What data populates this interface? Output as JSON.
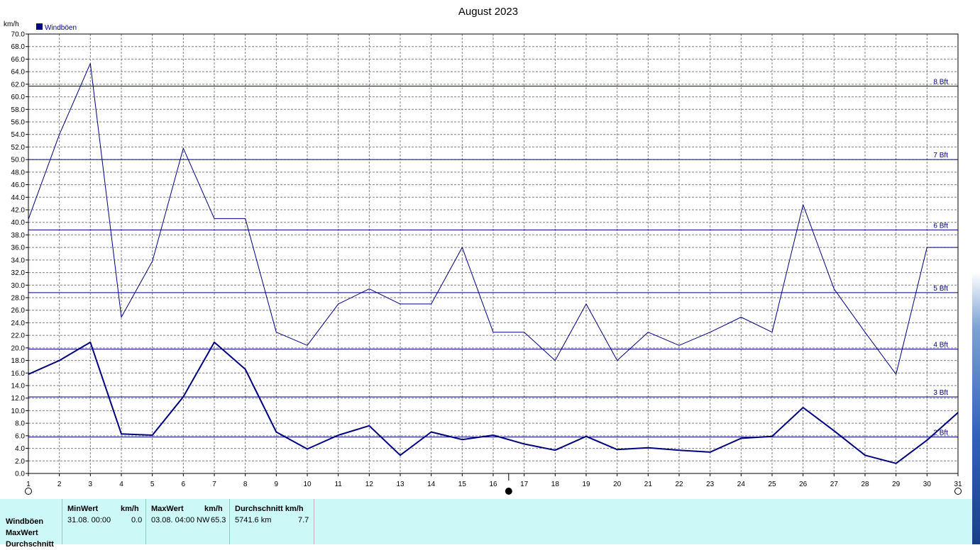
{
  "chart_data": {
    "type": "line",
    "title": "August 2023",
    "ylabel": "km/h",
    "xlim": [
      1,
      31
    ],
    "ylim": [
      0,
      70
    ],
    "y_tick_step": 2,
    "x": [
      1,
      2,
      3,
      4,
      5,
      6,
      7,
      8,
      9,
      10,
      11,
      12,
      13,
      14,
      15,
      16,
      17,
      18,
      19,
      20,
      21,
      22,
      23,
      24,
      25,
      26,
      27,
      28,
      29,
      30,
      31
    ],
    "legend": {
      "label": "Windböen",
      "color": "#000080",
      "placement": "top-left"
    },
    "series": [
      {
        "name": "MaxWert",
        "line_weight": "thin",
        "values": [
          40.5,
          54.0,
          65.3,
          24.9,
          33.8,
          51.8,
          40.6,
          40.6,
          22.5,
          20.4,
          27.0,
          29.4,
          27.0,
          27.0,
          36.0,
          22.5,
          22.5,
          18.0,
          27.0,
          18.0,
          22.5,
          20.4,
          22.5,
          24.9,
          22.5,
          42.8,
          29.4,
          22.5,
          15.8,
          36.0,
          36.0
        ]
      },
      {
        "values": [
          15.8,
          18.0,
          20.9,
          6.3,
          6.1,
          12.2,
          20.9,
          16.6,
          6.6,
          3.9,
          6.1,
          7.6,
          2.9,
          6.6,
          5.4,
          6.1,
          4.7,
          3.7,
          5.9,
          3.8,
          4.1,
          3.7,
          3.4,
          5.6,
          5.9,
          10.5,
          6.8,
          2.9,
          1.6,
          5.3,
          9.7
        ]
      }
    ],
    "reference_lines": [
      {
        "label": "2 Bft",
        "value": 5.8
      },
      {
        "label": "3 Bft",
        "value": 12.2
      },
      {
        "label": "4 Bft",
        "value": 19.8
      },
      {
        "label": "5 Bft",
        "value": 28.8
      },
      {
        "label": "6 Bft",
        "value": 38.8
      },
      {
        "label": "7 Bft",
        "value": 50.0
      },
      {
        "label": "8 Bft",
        "value": 61.7
      }
    ],
    "moon_phases": [
      {
        "day": 1,
        "phase": "full-moon"
      },
      {
        "day": 16.5,
        "phase": "new-moon"
      },
      {
        "day": 31,
        "phase": "full-moon"
      }
    ],
    "grid": true,
    "colors": {
      "series": "#000080",
      "grid": "#808080",
      "axis": "#000000"
    }
  },
  "stats": {
    "row_labels": [
      "Windböen",
      "MaxWert",
      "Durchschnitt"
    ],
    "min_header": "MinWert",
    "min_unit": "km/h",
    "min_date": "31.08.  00:00",
    "min_value": "0.0",
    "max_header": "MaxWert",
    "max_unit": "km/h",
    "max_date": "03.08.  04:00",
    "max_dir": "NW",
    "max_value": "65.3",
    "avg_header": "Durchschnitt km/h",
    "avg_distance": "5741.6 km",
    "avg_value": "7.7"
  }
}
